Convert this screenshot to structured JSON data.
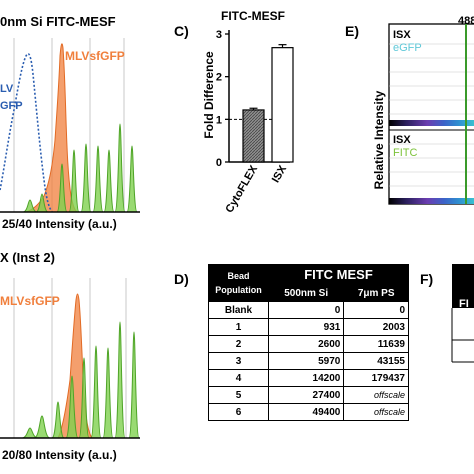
{
  "panel_a": {
    "title_fragment": "0nm Si FITC-MESF",
    "label_mlvsfgfp": "MLVsfGFP",
    "label_egfp_top": "LV",
    "label_egfp_bottom": "GFP",
    "xlabel": "25/40 Intensity (a.u.)"
  },
  "panel_b": {
    "title_fragment": "X (Inst 2)",
    "label_mlvsfgfp": "MLVsfGFP",
    "xlabel": "20/80 Intensity (a.u.)"
  },
  "panel_c": {
    "letter": "C)",
    "title": "FITC-MESF",
    "ylabel": "Fold Difference",
    "yticks": [
      "0",
      "1",
      "2",
      "3"
    ],
    "reference_line": 1
  },
  "panel_d": {
    "letter": "D)",
    "col_population_1": "Bead",
    "col_population_2": "Population",
    "group_header": "FITC MESF",
    "col_si": "500nm Si",
    "col_ps": "7μm PS",
    "rows": [
      {
        "population": "Blank",
        "si": "0",
        "ps": "0"
      },
      {
        "population": "1",
        "si": "931",
        "ps": "2003"
      },
      {
        "population": "2",
        "si": "2600",
        "ps": "11639"
      },
      {
        "population": "3",
        "si": "5970",
        "ps": "43155"
      },
      {
        "population": "4",
        "si": "14200",
        "ps": "179437"
      },
      {
        "population": "5",
        "si": "27400",
        "ps": "offscale"
      },
      {
        "population": "6",
        "si": "49400",
        "ps": "offscale"
      }
    ]
  },
  "panel_e": {
    "letter": "E)",
    "top_number": "488",
    "ylabel": "Relative Intensity",
    "upper_labels": [
      "ISX",
      "eGFP"
    ],
    "lower_labels": [
      "ISX",
      "FITC"
    ]
  },
  "panel_f": {
    "letter": "F)",
    "fragment": "FI"
  },
  "chart_data": [
    {
      "type": "bar",
      "title": "FITC-MESF",
      "ylabel": "Fold Difference",
      "categories": [
        "CytoFLEX",
        "ISX"
      ],
      "values": [
        1.22,
        2.68
      ],
      "errors": [
        0.04,
        0.07
      ],
      "ylim": [
        0,
        3
      ],
      "reference_line": 1,
      "colors": {
        "CytoFLEX": "#9a9a9a",
        "ISX": "#ffffff"
      }
    },
    {
      "type": "area",
      "title": "0nm Si FITC-MESF",
      "xlabel": "25/40 Intensity (a.u.)",
      "series": [
        {
          "name": "MLVsfGFP",
          "color": "#f07f3c"
        },
        {
          "name": "eGFP",
          "color": "#2a5db0"
        },
        {
          "color": "#66c23a"
        }
      ]
    },
    {
      "type": "area",
      "title": "X (Inst 2)",
      "xlabel": "20/80 Intensity (a.u.)",
      "series": [
        {
          "name": "MLVsfGFP",
          "color": "#f07f3c"
        },
        {
          "color": "#66c23a"
        }
      ]
    }
  ],
  "colors": {
    "orange": "#f07f3c",
    "green": "#66c23a",
    "blue": "#2a5db0",
    "egfp_text": "#5fc8d8",
    "fitc_text": "#7cc23a"
  }
}
